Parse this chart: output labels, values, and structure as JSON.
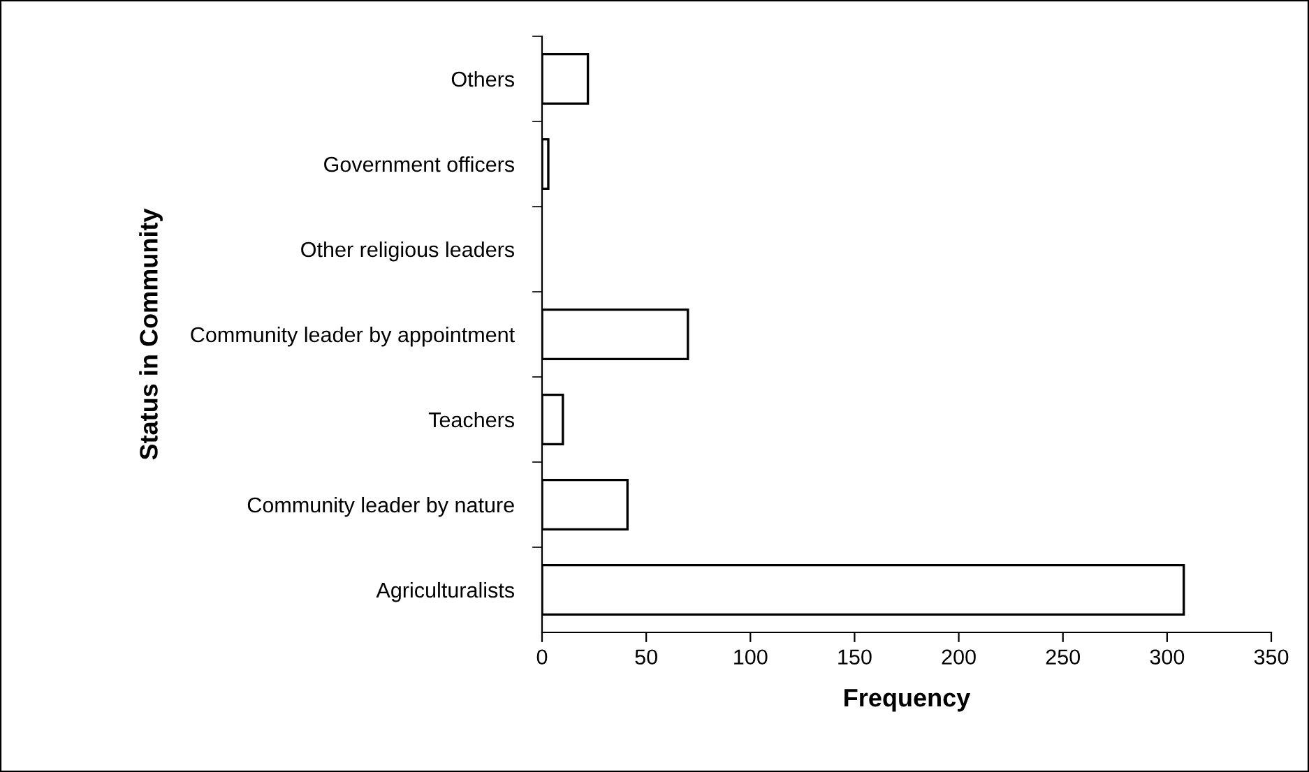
{
  "chart_data": {
    "type": "bar",
    "orientation": "horizontal",
    "ylabel": "Status in Community",
    "xlabel": "Frequency",
    "categories": [
      "Others",
      "Government officers",
      "Other religious leaders",
      "Community leader by appointment",
      "Teachers",
      "Community leader by nature",
      "Agriculturalists"
    ],
    "values": [
      22,
      3,
      null,
      70,
      10,
      41,
      308
    ],
    "color": "#ffffff",
    "xlim": [
      0,
      350
    ],
    "xticks": [
      0,
      50,
      100,
      150,
      200,
      250,
      300,
      350
    ],
    "grid": false,
    "legend": false
  }
}
